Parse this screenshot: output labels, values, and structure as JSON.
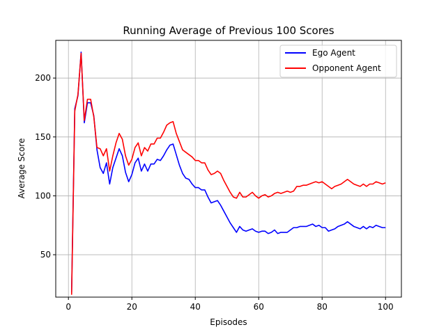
{
  "chart_data": {
    "type": "line",
    "title": "Running Average of Previous 100 Scores",
    "xlabel": "Episodes",
    "ylabel": "Average Score",
    "xlim": [
      -4,
      105
    ],
    "ylim": [
      14,
      232
    ],
    "xticks": [
      0,
      20,
      40,
      60,
      80,
      100
    ],
    "yticks": [
      50,
      100,
      150,
      200
    ],
    "grid": true,
    "legend_position": "top-right",
    "series": [
      {
        "name": "Ego Agent",
        "color": "#0000ff",
        "x": [
          1,
          2,
          3,
          4,
          5,
          6,
          7,
          8,
          9,
          10,
          11,
          12,
          13,
          14,
          15,
          16,
          17,
          18,
          19,
          20,
          21,
          22,
          23,
          24,
          25,
          26,
          27,
          28,
          29,
          30,
          31,
          32,
          33,
          34,
          35,
          36,
          37,
          38,
          39,
          40,
          41,
          42,
          43,
          44,
          45,
          46,
          47,
          48,
          49,
          50,
          51,
          52,
          53,
          54,
          55,
          56,
          57,
          58,
          59,
          60,
          61,
          62,
          63,
          64,
          65,
          66,
          67,
          68,
          69,
          70,
          71,
          72,
          73,
          74,
          75,
          76,
          77,
          78,
          79,
          80,
          81,
          82,
          83,
          84,
          85,
          86,
          87,
          88,
          89,
          90,
          91,
          92,
          93,
          94,
          95,
          96,
          97,
          98,
          99,
          100
        ],
        "values": [
          18,
          174,
          185,
          222,
          162,
          179,
          179,
          168,
          139,
          124,
          119,
          128,
          110,
          124,
          132,
          140,
          134,
          120,
          112,
          118,
          128,
          132,
          121,
          127,
          121,
          127,
          127,
          131,
          130,
          134,
          139,
          143,
          144,
          135,
          126,
          119,
          115,
          114,
          110,
          107,
          107,
          105,
          105,
          99,
          94,
          95,
          96,
          92,
          87,
          82,
          77,
          73,
          69,
          74,
          71,
          70,
          71,
          72,
          70,
          69,
          70,
          70,
          68,
          69,
          71,
          68,
          69,
          69,
          69,
          71,
          73,
          73,
          74,
          74,
          74,
          75,
          76,
          74,
          75,
          73,
          73,
          70,
          71,
          72,
          74,
          75,
          76,
          78,
          76,
          74,
          73,
          72,
          74,
          72,
          74,
          73,
          75,
          74,
          73,
          73
        ]
      },
      {
        "name": "Opponent Agent",
        "color": "#ff0000",
        "x": [
          1,
          2,
          3,
          4,
          5,
          6,
          7,
          8,
          9,
          10,
          11,
          12,
          13,
          14,
          15,
          16,
          17,
          18,
          19,
          20,
          21,
          22,
          23,
          24,
          25,
          26,
          27,
          28,
          29,
          30,
          31,
          32,
          33,
          34,
          35,
          36,
          37,
          38,
          39,
          40,
          41,
          42,
          43,
          44,
          45,
          46,
          47,
          48,
          49,
          50,
          51,
          52,
          53,
          54,
          55,
          56,
          57,
          58,
          59,
          60,
          61,
          62,
          63,
          64,
          65,
          66,
          67,
          68,
          69,
          70,
          71,
          72,
          73,
          74,
          75,
          76,
          77,
          78,
          79,
          80,
          81,
          82,
          83,
          84,
          85,
          86,
          87,
          88,
          89,
          90,
          91,
          92,
          93,
          94,
          95,
          96,
          97,
          98,
          99,
          100
        ],
        "values": [
          16,
          172,
          186,
          221,
          164,
          182,
          182,
          167,
          141,
          140,
          134,
          140,
          121,
          134,
          145,
          153,
          148,
          134,
          126,
          131,
          141,
          145,
          134,
          141,
          138,
          144,
          144,
          149,
          149,
          154,
          160,
          162,
          163,
          153,
          146,
          139,
          137,
          135,
          133,
          130,
          130,
          128,
          128,
          122,
          118,
          119,
          121,
          119,
          113,
          108,
          103,
          99,
          98,
          103,
          99,
          99,
          101,
          103,
          100,
          98,
          100,
          101,
          99,
          100,
          102,
          103,
          102,
          103,
          104,
          103,
          104,
          108,
          108,
          109,
          109,
          110,
          111,
          112,
          111,
          112,
          110,
          108,
          106,
          108,
          109,
          110,
          112,
          114,
          112,
          110,
          109,
          108,
          110,
          108,
          110,
          110,
          112,
          111,
          110,
          111
        ]
      }
    ]
  }
}
